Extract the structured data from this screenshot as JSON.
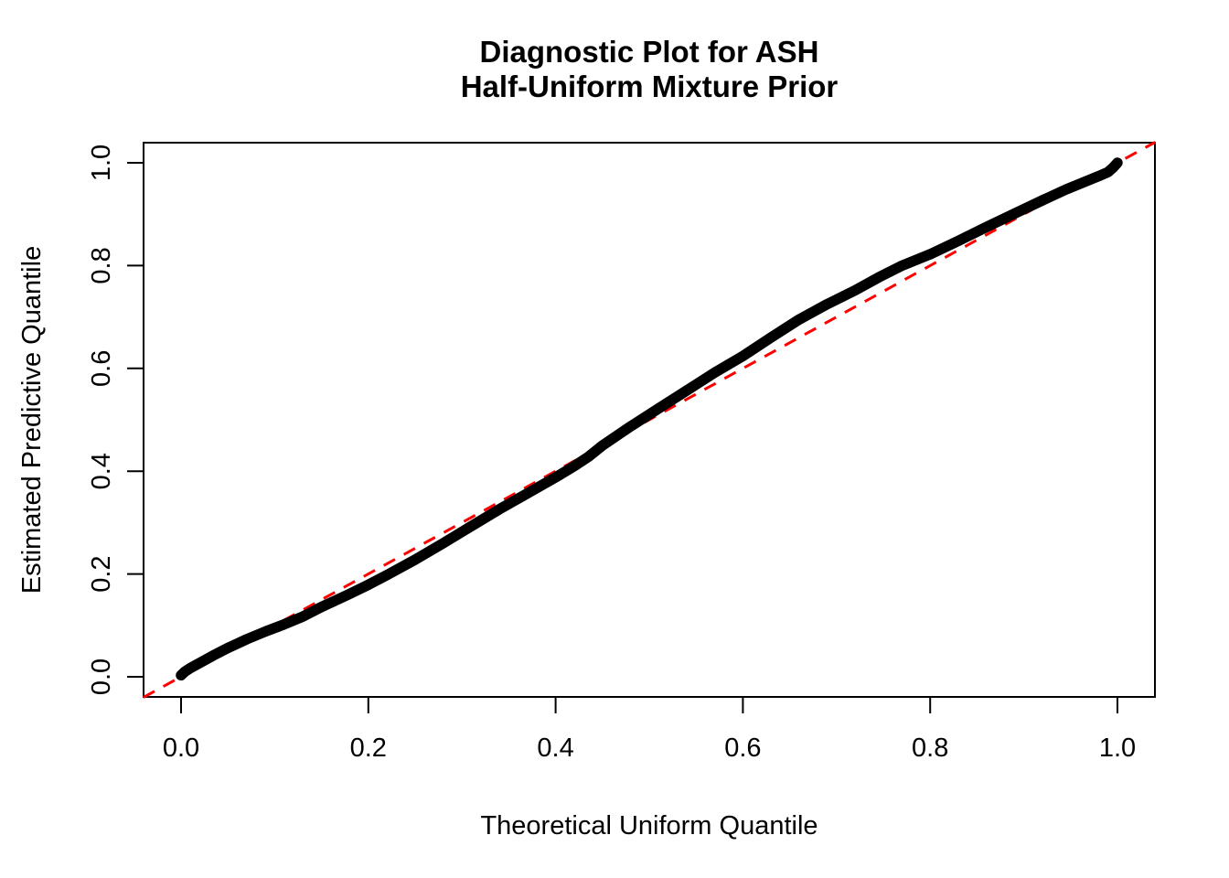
{
  "title": {
    "line1": "Diagnostic Plot for ASH",
    "line2": "Half-Uniform Mixture Prior"
  },
  "axes": {
    "x": {
      "label": "Theoretical Uniform Quantile",
      "ticks": [
        "0.0",
        "0.2",
        "0.4",
        "0.6",
        "0.8",
        "1.0"
      ]
    },
    "y": {
      "label": "Estimated Predictive Quantile",
      "ticks": [
        "0.0",
        "0.2",
        "0.4",
        "0.6",
        "0.8",
        "1.0"
      ]
    }
  },
  "colors": {
    "curve": "#000000",
    "reference": "#ff0000",
    "frame": "#000000"
  },
  "chart_data": {
    "type": "line",
    "title": "Diagnostic Plot for ASH Half-Uniform Mixture Prior",
    "xlabel": "Theoretical Uniform Quantile",
    "ylabel": "Estimated Predictive Quantile",
    "xlim": [
      -0.04,
      1.04
    ],
    "ylim": [
      -0.04,
      1.04
    ],
    "x_ticks": [
      0.0,
      0.2,
      0.4,
      0.6,
      0.8,
      1.0
    ],
    "y_ticks": [
      0.0,
      0.2,
      0.4,
      0.6,
      0.8,
      1.0
    ],
    "grid": false,
    "legend": "none",
    "series": [
      {
        "name": "ASH estimated predictive quantile vs theoretical uniform quantile",
        "style": "thick solid black curve",
        "points": [
          [
            0.0,
            0.003
          ],
          [
            0.004,
            0.01
          ],
          [
            0.01,
            0.017
          ],
          [
            0.02,
            0.027
          ],
          [
            0.035,
            0.042
          ],
          [
            0.05,
            0.056
          ],
          [
            0.07,
            0.073
          ],
          [
            0.09,
            0.088
          ],
          [
            0.11,
            0.102
          ],
          [
            0.13,
            0.117
          ],
          [
            0.15,
            0.136
          ],
          [
            0.175,
            0.157
          ],
          [
            0.2,
            0.179
          ],
          [
            0.22,
            0.198
          ],
          [
            0.25,
            0.228
          ],
          [
            0.28,
            0.26
          ],
          [
            0.31,
            0.293
          ],
          [
            0.34,
            0.326
          ],
          [
            0.37,
            0.357
          ],
          [
            0.4,
            0.388
          ],
          [
            0.42,
            0.41
          ],
          [
            0.435,
            0.428
          ],
          [
            0.45,
            0.45
          ],
          [
            0.48,
            0.487
          ],
          [
            0.51,
            0.522
          ],
          [
            0.54,
            0.557
          ],
          [
            0.57,
            0.592
          ],
          [
            0.6,
            0.624
          ],
          [
            0.63,
            0.66
          ],
          [
            0.66,
            0.695
          ],
          [
            0.69,
            0.725
          ],
          [
            0.72,
            0.752
          ],
          [
            0.745,
            0.777
          ],
          [
            0.77,
            0.8
          ],
          [
            0.8,
            0.822
          ],
          [
            0.83,
            0.848
          ],
          [
            0.86,
            0.875
          ],
          [
            0.89,
            0.901
          ],
          [
            0.92,
            0.927
          ],
          [
            0.945,
            0.948
          ],
          [
            0.965,
            0.963
          ],
          [
            0.98,
            0.974
          ],
          [
            0.99,
            0.982
          ],
          [
            0.995,
            0.99
          ],
          [
            1.0,
            1.0
          ]
        ]
      }
    ],
    "reference_line": {
      "name": "y = x diagonal",
      "slope": 1,
      "intercept": 0,
      "style": "dashed red",
      "x_start": -0.0403,
      "x_end": 1.0403
    }
  }
}
